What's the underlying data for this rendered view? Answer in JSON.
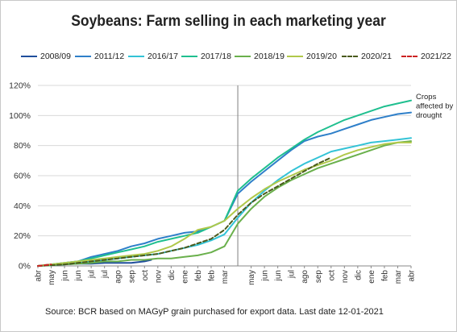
{
  "chart_data": {
    "type": "line",
    "title": "Soybeans: Farm selling in each marketing year",
    "xlabel": "",
    "ylabel": "",
    "y_ticks": [
      "0%",
      "20%",
      "40%",
      "60%",
      "80%",
      "100%",
      "120%"
    ],
    "ylim": [
      0,
      120
    ],
    "x_categories": [
      "abr",
      "may",
      "jun",
      "jun",
      "jul",
      "jul",
      "ago",
      "sep",
      "oct",
      "nov",
      "dic",
      "ene",
      "feb",
      "feb",
      "mar",
      "may",
      "jun",
      "jun",
      "jul",
      "ago",
      "sep",
      "oct",
      "nov",
      "dic",
      "ene",
      "feb",
      "mar",
      "abr"
    ],
    "x_label_week": [
      0,
      2,
      4,
      6,
      8,
      10,
      12,
      14,
      16,
      18,
      20,
      22,
      24,
      26,
      28,
      32,
      34,
      36,
      38,
      40,
      42,
      44,
      46,
      48,
      50,
      52,
      54,
      56
    ],
    "xlim": [
      0,
      56
    ],
    "divider_week": 30,
    "grid": "horizontal",
    "legend_position": "top",
    "annotation": [
      "Crops",
      "affected by",
      "drought"
    ],
    "series": [
      {
        "name": "2008/09",
        "color": "#1f4e9c",
        "dash": "solid",
        "points": [
          [
            0,
            0
          ],
          [
            2,
            0.5
          ],
          [
            4,
            1
          ],
          [
            6,
            1.5
          ],
          [
            8,
            1.5
          ],
          [
            10,
            2
          ],
          [
            12,
            2
          ],
          [
            14,
            2
          ],
          [
            16,
            3
          ],
          [
            17,
            4
          ]
        ]
      },
      {
        "name": "2011/12",
        "color": "#2e7fc9",
        "dash": "solid",
        "points": [
          [
            0,
            0
          ],
          [
            2,
            1
          ],
          [
            4,
            2
          ],
          [
            6,
            3
          ],
          [
            8,
            6
          ],
          [
            10,
            8
          ],
          [
            12,
            10
          ],
          [
            14,
            13
          ],
          [
            16,
            15
          ],
          [
            18,
            18
          ],
          [
            20,
            20
          ],
          [
            22,
            22
          ],
          [
            24,
            23
          ],
          [
            26,
            26
          ],
          [
            28,
            30
          ],
          [
            30,
            48
          ],
          [
            32,
            56
          ],
          [
            34,
            63
          ],
          [
            36,
            70
          ],
          [
            38,
            77
          ],
          [
            40,
            83
          ],
          [
            42,
            86
          ],
          [
            44,
            88
          ],
          [
            46,
            91
          ],
          [
            48,
            94
          ],
          [
            50,
            97
          ],
          [
            52,
            99
          ],
          [
            54,
            101
          ],
          [
            56,
            102
          ]
        ]
      },
      {
        "name": "2016/17",
        "color": "#33c3d6",
        "dash": "solid",
        "points": [
          [
            0,
            0
          ],
          [
            2,
            0.5
          ],
          [
            4,
            1
          ],
          [
            6,
            2
          ],
          [
            8,
            3
          ],
          [
            10,
            4
          ],
          [
            12,
            5
          ],
          [
            14,
            6
          ],
          [
            16,
            7
          ],
          [
            18,
            8
          ],
          [
            20,
            10
          ],
          [
            22,
            12
          ],
          [
            24,
            14
          ],
          [
            26,
            17
          ],
          [
            28,
            21
          ],
          [
            30,
            32
          ],
          [
            32,
            42
          ],
          [
            34,
            50
          ],
          [
            36,
            57
          ],
          [
            38,
            63
          ],
          [
            40,
            68
          ],
          [
            42,
            72
          ],
          [
            44,
            76
          ],
          [
            46,
            78
          ],
          [
            48,
            80
          ],
          [
            50,
            82
          ],
          [
            52,
            83
          ],
          [
            54,
            84
          ],
          [
            56,
            85
          ]
        ]
      },
      {
        "name": "2017/18",
        "color": "#1fbf8f",
        "dash": "solid",
        "points": [
          [
            0,
            0
          ],
          [
            2,
            1
          ],
          [
            4,
            2
          ],
          [
            6,
            3
          ],
          [
            8,
            5
          ],
          [
            10,
            7
          ],
          [
            12,
            9
          ],
          [
            14,
            11
          ],
          [
            16,
            13
          ],
          [
            18,
            16
          ],
          [
            20,
            18
          ],
          [
            22,
            20
          ],
          [
            24,
            22
          ],
          [
            26,
            26
          ],
          [
            28,
            30
          ],
          [
            30,
            50
          ],
          [
            32,
            58
          ],
          [
            34,
            65
          ],
          [
            36,
            72
          ],
          [
            38,
            78
          ],
          [
            40,
            84
          ],
          [
            42,
            89
          ],
          [
            44,
            93
          ],
          [
            46,
            97
          ],
          [
            48,
            100
          ],
          [
            50,
            103
          ],
          [
            52,
            106
          ],
          [
            54,
            108
          ],
          [
            56,
            110
          ]
        ]
      },
      {
        "name": "2018/19",
        "color": "#6ab04c",
        "dash": "solid",
        "points": [
          [
            0,
            0
          ],
          [
            2,
            0.5
          ],
          [
            4,
            1
          ],
          [
            6,
            1.5
          ],
          [
            8,
            2
          ],
          [
            10,
            3
          ],
          [
            12,
            3
          ],
          [
            14,
            4
          ],
          [
            16,
            4
          ],
          [
            18,
            5
          ],
          [
            20,
            5
          ],
          [
            22,
            6
          ],
          [
            24,
            7
          ],
          [
            26,
            9
          ],
          [
            28,
            13
          ],
          [
            30,
            28
          ],
          [
            32,
            38
          ],
          [
            34,
            46
          ],
          [
            36,
            52
          ],
          [
            38,
            57
          ],
          [
            40,
            61
          ],
          [
            42,
            65
          ],
          [
            44,
            68
          ],
          [
            46,
            71
          ],
          [
            48,
            74
          ],
          [
            50,
            77
          ],
          [
            52,
            80
          ],
          [
            54,
            82
          ],
          [
            56,
            83
          ]
        ]
      },
      {
        "name": "2019/20",
        "color": "#b0c84a",
        "dash": "solid",
        "points": [
          [
            0,
            0
          ],
          [
            2,
            1
          ],
          [
            4,
            2
          ],
          [
            6,
            3
          ],
          [
            8,
            4
          ],
          [
            10,
            5
          ],
          [
            12,
            6
          ],
          [
            14,
            7
          ],
          [
            16,
            8
          ],
          [
            18,
            10
          ],
          [
            20,
            13
          ],
          [
            22,
            18
          ],
          [
            24,
            24
          ],
          [
            26,
            26
          ],
          [
            28,
            30
          ],
          [
            30,
            38
          ],
          [
            32,
            45
          ],
          [
            34,
            51
          ],
          [
            36,
            56
          ],
          [
            38,
            60
          ],
          [
            40,
            64
          ],
          [
            42,
            67
          ],
          [
            44,
            70
          ],
          [
            46,
            74
          ],
          [
            48,
            77
          ],
          [
            50,
            79
          ],
          [
            52,
            81
          ],
          [
            54,
            82
          ],
          [
            56,
            82
          ]
        ]
      },
      {
        "name": "2020/21",
        "color": "#4a5a1c",
        "dash": "dashed",
        "points": [
          [
            0,
            0
          ],
          [
            2,
            0.5
          ],
          [
            4,
            1
          ],
          [
            6,
            2
          ],
          [
            8,
            3
          ],
          [
            10,
            4
          ],
          [
            12,
            5
          ],
          [
            14,
            6
          ],
          [
            16,
            7
          ],
          [
            18,
            8
          ],
          [
            20,
            10
          ],
          [
            22,
            12
          ],
          [
            24,
            15
          ],
          [
            26,
            18
          ],
          [
            28,
            24
          ],
          [
            30,
            34
          ],
          [
            32,
            42
          ],
          [
            34,
            48
          ],
          [
            36,
            53
          ],
          [
            38,
            58
          ],
          [
            40,
            63
          ],
          [
            42,
            68
          ],
          [
            44,
            72
          ]
        ]
      },
      {
        "name": "2021/22",
        "color": "#cc2222",
        "dash": "dashed",
        "points": [
          [
            0,
            0
          ],
          [
            1,
            0.5
          ],
          [
            2,
            1
          ]
        ]
      }
    ],
    "footnote": "Source: BCR based on MAGyP grain purchased for export data. Last date 12-01-2021"
  }
}
